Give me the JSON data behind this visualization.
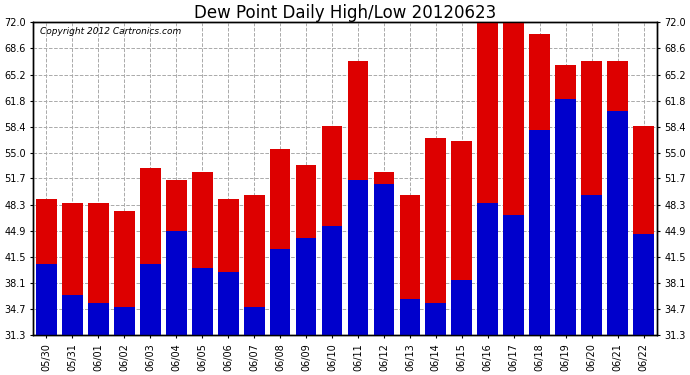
{
  "title": "Dew Point Daily High/Low 20120623",
  "copyright": "Copyright 2012 Cartronics.com",
  "dates": [
    "05/30",
    "05/31",
    "06/01",
    "06/02",
    "06/03",
    "06/04",
    "06/05",
    "06/06",
    "06/07",
    "06/08",
    "06/09",
    "06/10",
    "06/11",
    "06/12",
    "06/13",
    "06/14",
    "06/15",
    "06/16",
    "06/17",
    "06/18",
    "06/19",
    "06/20",
    "06/21",
    "06/22"
  ],
  "highs": [
    49.0,
    48.5,
    48.5,
    47.5,
    53.0,
    51.5,
    52.5,
    49.0,
    49.5,
    55.5,
    53.5,
    58.5,
    67.0,
    52.5,
    49.5,
    57.0,
    56.5,
    72.0,
    72.0,
    70.5,
    66.5,
    67.0,
    67.0,
    58.5
  ],
  "lows": [
    40.5,
    36.5,
    35.5,
    35.0,
    40.5,
    44.9,
    40.0,
    39.5,
    35.0,
    42.5,
    44.0,
    45.5,
    51.5,
    51.0,
    36.0,
    35.5,
    38.5,
    48.5,
    47.0,
    58.0,
    62.0,
    49.5,
    60.5,
    44.5
  ],
  "bar_width": 0.8,
  "high_color": "#dd0000",
  "low_color": "#0000cc",
  "ylim_min": 31.3,
  "ylim_max": 72.0,
  "yticks": [
    31.3,
    34.7,
    38.1,
    41.5,
    44.9,
    48.3,
    51.7,
    55.0,
    58.4,
    61.8,
    65.2,
    68.6,
    72.0
  ],
  "bg_color": "#ffffff",
  "grid_color": "#aaaaaa",
  "title_fontsize": 12,
  "tick_fontsize": 7,
  "copyright_fontsize": 6.5,
  "fig_width": 6.9,
  "fig_height": 3.75,
  "dpi": 100
}
